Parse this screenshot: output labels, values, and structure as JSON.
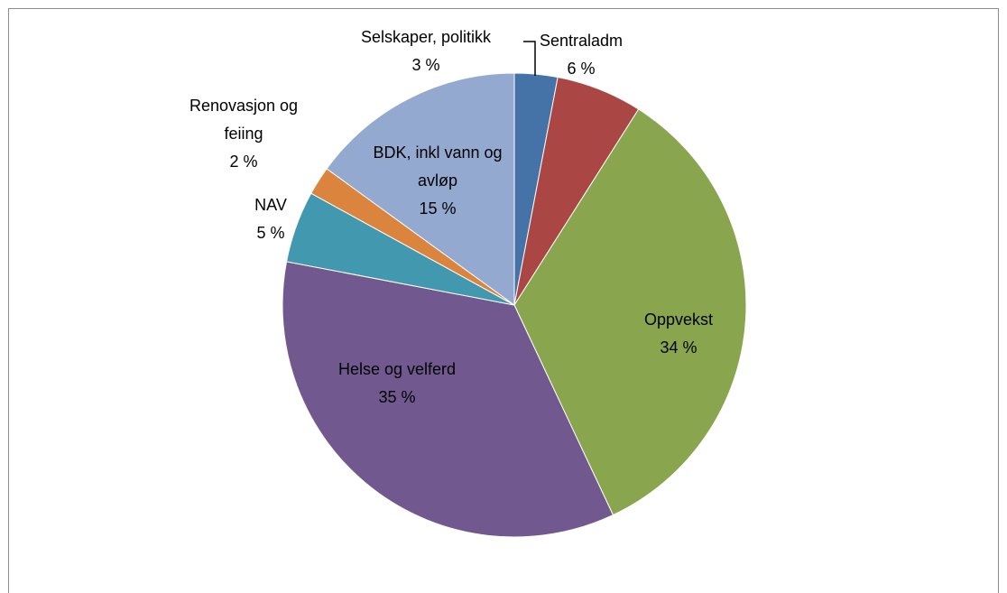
{
  "chart_data": {
    "type": "pie",
    "categories": [
      "Selskaper, politikk",
      "Sentraladm",
      "Oppvekst",
      "Helse og velferd",
      "NAV",
      "Renovasjon og feiing",
      "BDK, inkl vann og avløp"
    ],
    "values": [
      3,
      6,
      34,
      35,
      5,
      2,
      15
    ],
    "value_labels": [
      "3 %",
      "6 %",
      "34 %",
      "35 %",
      "5 %",
      "2 %",
      "15 %"
    ],
    "colors": [
      "#4572a7",
      "#aa4643",
      "#89a54e",
      "#71588f",
      "#4198af",
      "#db843d",
      "#93a9cf"
    ]
  }
}
